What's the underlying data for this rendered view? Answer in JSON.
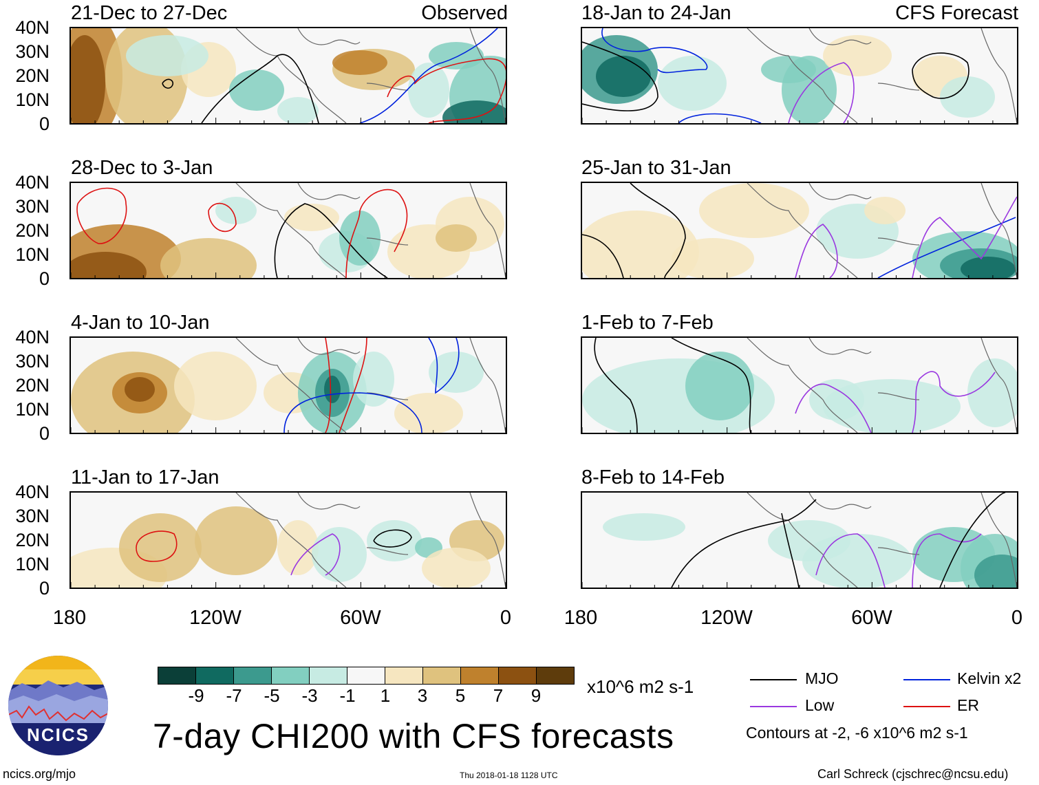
{
  "columns": {
    "left_label": "Observed",
    "right_label": "CFS Forecast"
  },
  "panels": [
    {
      "title": "21-Dec to 27-Dec",
      "column": "left",
      "row": 0
    },
    {
      "title": "28-Dec to 3-Jan",
      "column": "left",
      "row": 1
    },
    {
      "title": "4-Jan to 10-Jan",
      "column": "left",
      "row": 2
    },
    {
      "title": "11-Jan to 17-Jan",
      "column": "left",
      "row": 3
    },
    {
      "title": "18-Jan to 24-Jan",
      "column": "right",
      "row": 0
    },
    {
      "title": "25-Jan to 31-Jan",
      "column": "right",
      "row": 1
    },
    {
      "title": "1-Feb to 7-Feb",
      "column": "right",
      "row": 2
    },
    {
      "title": "8-Feb to 14-Feb",
      "column": "right",
      "row": 3
    }
  ],
  "chart_data": {
    "type": "heatmap",
    "title": "7-day CHI200 with CFS forecasts",
    "variable": "CHI200 anomaly",
    "units": "x10^6 m2 s-1",
    "y_ticks": [
      "40N",
      "30N",
      "20N",
      "10N",
      "0"
    ],
    "x_ticks": [
      "180",
      "120W",
      "60W",
      "0"
    ],
    "xlim": [
      -180,
      0
    ],
    "ylim": [
      0,
      40
    ],
    "colorbar": {
      "ticks": [
        "-9",
        "-7",
        "-5",
        "-3",
        "-1",
        "1",
        "3",
        "5",
        "7",
        "9"
      ],
      "colors": [
        "#0b3f38",
        "#106a60",
        "#3c9a8e",
        "#82cfc0",
        "#c7ebe3",
        "#f7f7f7",
        "#f6e6c0",
        "#dfc27e",
        "#bf812d",
        "#8c5111",
        "#5e3c0c"
      ]
    },
    "contour_legend": [
      {
        "name": "MJO",
        "color": "#000000"
      },
      {
        "name": "Kelvin x2",
        "color": "#0022dd"
      },
      {
        "name": "Low",
        "color": "#9a38e0"
      },
      {
        "name": "ER",
        "color": "#dd1111"
      }
    ],
    "contour_note": "Contours at -2, -6 x10^6 m2 s-1"
  },
  "footer": {
    "logo_text": "NCICS",
    "url": "ncics.org/mjo",
    "timestamp": "Thu 2018-01-18 1128 UTC",
    "author": "Carl Schreck (cjschrec@ncsu.edu)"
  }
}
